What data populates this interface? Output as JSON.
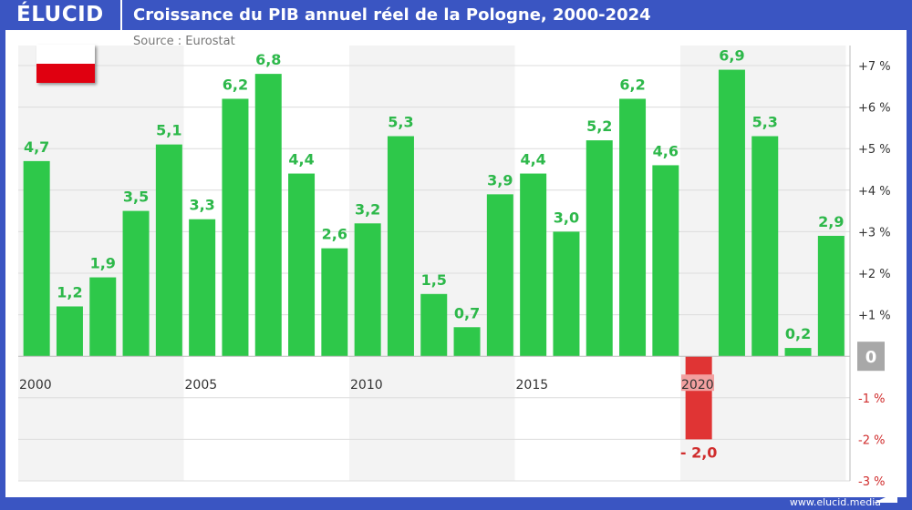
{
  "header": {
    "logo": "ÉLUCID",
    "title": "Croissance du PIB annuel réel de la Pologne, 2000-2024"
  },
  "source": "Source : Eurostat",
  "footer": "www.elucid.media",
  "colors": {
    "brand": "#3a55c2",
    "positive": "#2ec84a",
    "negative": "#e03434",
    "label_positive": "#2db84a",
    "label_negative": "#d02c2c"
  },
  "chart_data": {
    "type": "bar",
    "categories": [
      "2000",
      "2001",
      "2002",
      "2003",
      "2004",
      "2005",
      "2006",
      "2007",
      "2008",
      "2009",
      "2010",
      "2011",
      "2012",
      "2013",
      "2014",
      "2015",
      "2016",
      "2017",
      "2018",
      "2019",
      "2020",
      "2021",
      "2022",
      "2023",
      "2024"
    ],
    "values": [
      4.7,
      1.2,
      1.9,
      3.5,
      5.1,
      3.3,
      6.2,
      6.8,
      4.4,
      2.6,
      3.2,
      5.3,
      1.5,
      0.7,
      3.9,
      4.4,
      3.0,
      5.2,
      6.2,
      4.6,
      -2.0,
      6.9,
      5.3,
      0.2,
      2.9
    ],
    "data_labels": [
      "4,7",
      "1,2",
      "1,9",
      "3,5",
      "5,1",
      "3,3",
      "6,2",
      "6,8",
      "4,4",
      "2,6",
      "3,2",
      "5,3",
      "1,5",
      "0,7",
      "3,9",
      "4,4",
      "3,0",
      "5,2",
      "6,2",
      "4,6",
      "- 2,0",
      "6,9",
      "5,3",
      "0,2",
      "2,9"
    ],
    "x_tick_labels": [
      "2000",
      "2005",
      "2010",
      "2015",
      "2020"
    ],
    "y_tick_labels": [
      "+7 %",
      "+6 %",
      "+5 %",
      "+4 %",
      "+3 %",
      "+2 %",
      "+1 %",
      "0",
      "-1 %",
      "-2 %",
      "-3 %"
    ],
    "y_ticks": [
      7,
      6,
      5,
      4,
      3,
      2,
      1,
      0,
      -1,
      -2,
      -3
    ],
    "ylim": [
      -3,
      7
    ],
    "ylabel": "",
    "xlabel": "",
    "grid": true,
    "y_axis_position": "right"
  }
}
